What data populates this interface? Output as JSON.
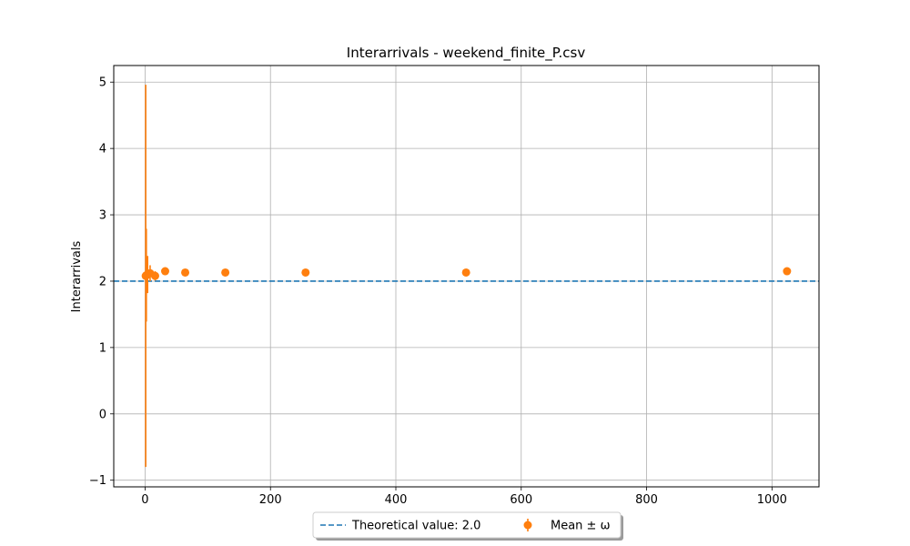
{
  "chart_data": {
    "type": "scatter",
    "title": "Interarrivals - weekend_finite_P.csv",
    "xlabel": "",
    "ylabel": "Interarrivals",
    "xlim": [
      -50,
      1075
    ],
    "ylim": [
      -1.1,
      5.25
    ],
    "xticks": [
      0,
      200,
      400,
      600,
      800,
      1000
    ],
    "yticks": [
      -1,
      0,
      1,
      2,
      3,
      4,
      5
    ],
    "xtick_labels": [
      "0",
      "200",
      "400",
      "600",
      "800",
      "1000"
    ],
    "ytick_labels": [
      "−1",
      "0",
      "1",
      "2",
      "3",
      "4",
      "5"
    ],
    "grid": true,
    "legend_position": "bottom-center",
    "reference_line": {
      "name": "Theoretical value: 2.0",
      "y": 2.0,
      "color": "#1f77b4",
      "style": "dashed"
    },
    "series": [
      {
        "name": "Mean ± ω",
        "color": "#ff7f0e",
        "x": [
          1,
          2,
          4,
          8,
          16,
          32,
          64,
          128,
          256,
          512,
          1024
        ],
        "y": [
          2.08,
          2.09,
          2.1,
          2.12,
          2.08,
          2.15,
          2.13,
          2.13,
          2.13,
          2.13,
          2.15
        ],
        "err": [
          2.88,
          0.7,
          0.28,
          0.12,
          0.07,
          0.06,
          0.03,
          0.02,
          0.01,
          0.01,
          0.01
        ]
      }
    ]
  }
}
